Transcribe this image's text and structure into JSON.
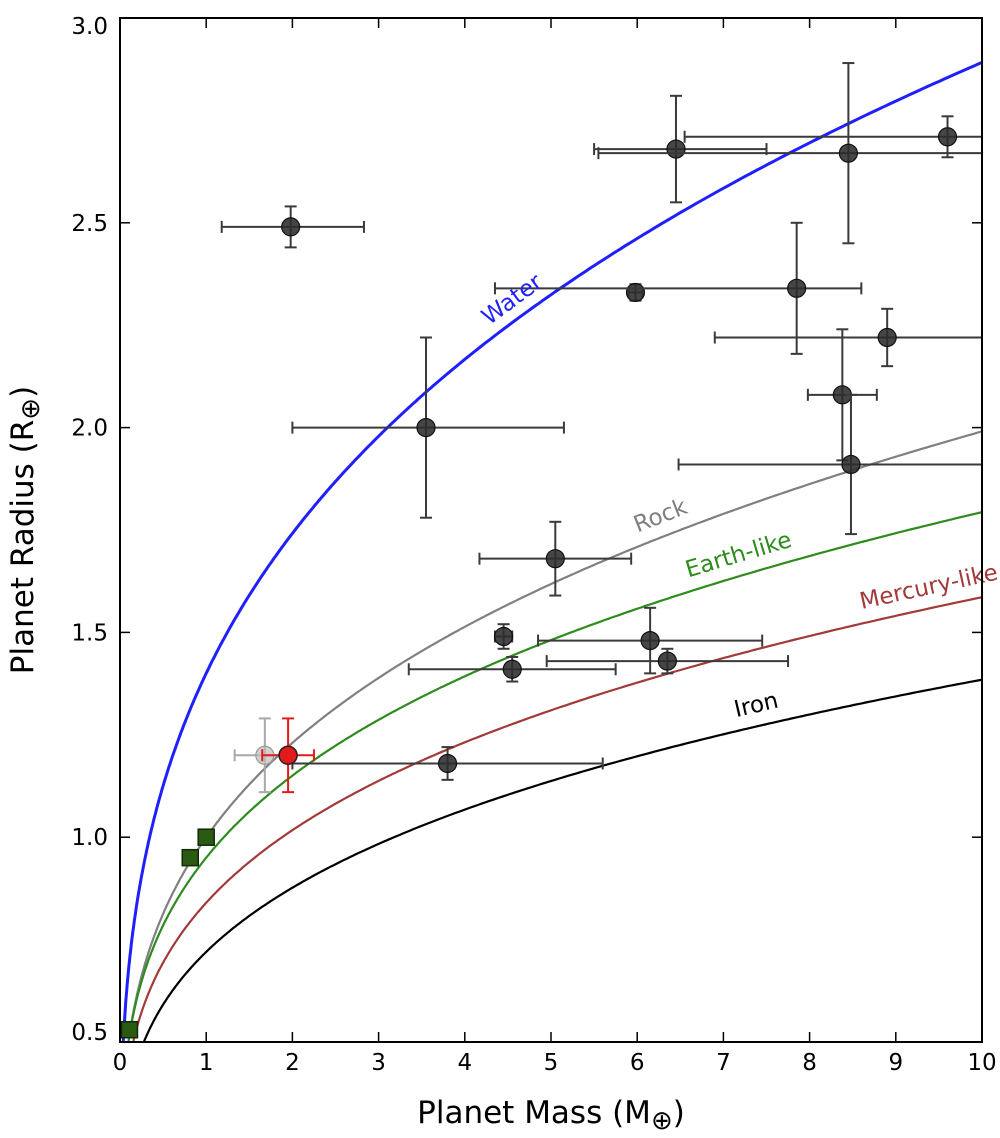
{
  "chart_data": {
    "type": "scatter",
    "title": "",
    "xlabel_text": "Planet Mass (M",
    "ylabel_text": "Planet Radius (R",
    "axis_symbol": "⊕",
    "xlim": [
      0,
      10
    ],
    "ylim": [
      0.5,
      3.0
    ],
    "xticks": [
      0,
      1,
      2,
      3,
      4,
      5,
      6,
      7,
      8,
      9,
      10
    ],
    "yticks": [
      0.5,
      1.0,
      1.5,
      2.0,
      2.5,
      3.0
    ],
    "grid": false,
    "curves": [
      {
        "name": "Water",
        "color": "#1f1fff",
        "a": 1.4,
        "b": 0.315
      },
      {
        "name": "Rock",
        "color": "#808080",
        "a": 1.0,
        "b": 0.299
      },
      {
        "name": "Earth-like",
        "color": "#2e8b1e",
        "a": 0.95,
        "b": 0.276
      },
      {
        "name": "Mercury-like",
        "color": "#a33a3a",
        "a": 0.84,
        "b": 0.276
      },
      {
        "name": "Iron",
        "color": "#000000",
        "a": 0.72,
        "b": 0.284
      }
    ],
    "planets": [
      {
        "x": 1.98,
        "y": 2.49,
        "xerr": [
          0.8,
          0.85
        ],
        "yerr": [
          0.05,
          0.05
        ]
      },
      {
        "x": 3.55,
        "y": 2.0,
        "xerr": [
          1.55,
          1.6
        ],
        "yerr": [
          0.22,
          0.22
        ]
      },
      {
        "x": 6.45,
        "y": 2.68,
        "xerr": [
          0.95,
          1.05
        ],
        "yerr": [
          0.13,
          0.13
        ]
      },
      {
        "x": 8.45,
        "y": 2.67,
        "xerr": [
          2.9,
          2.9
        ],
        "yerr": [
          0.22,
          0.22
        ]
      },
      {
        "x": 9.6,
        "y": 2.71,
        "xerr": [
          3.05,
          3.05
        ],
        "yerr": [
          0.05,
          0.05
        ]
      },
      {
        "x": 5.98,
        "y": 2.33,
        "xerr": [
          0.08,
          0.08
        ],
        "yerr": [
          0.02,
          0.02
        ]
      },
      {
        "x": 7.85,
        "y": 2.34,
        "xerr": [
          3.5,
          0.75
        ],
        "yerr": [
          0.16,
          0.16
        ]
      },
      {
        "x": 8.9,
        "y": 2.22,
        "xerr": [
          2.0,
          1.6
        ],
        "yerr": [
          0.07,
          0.07
        ]
      },
      {
        "x": 8.38,
        "y": 2.08,
        "xerr": [
          0.4,
          0.4
        ],
        "yerr": [
          0.16,
          0.16
        ]
      },
      {
        "x": 8.48,
        "y": 1.91,
        "xerr": [
          2.0,
          2.0
        ],
        "yerr": [
          0.17,
          0.17
        ]
      },
      {
        "x": 5.05,
        "y": 1.68,
        "xerr": [
          0.88,
          0.88
        ],
        "yerr": [
          0.09,
          0.09
        ]
      },
      {
        "x": 4.45,
        "y": 1.49,
        "xerr": [
          0.1,
          0.1
        ],
        "yerr": [
          0.03,
          0.03
        ]
      },
      {
        "x": 4.55,
        "y": 1.41,
        "xerr": [
          1.2,
          1.2
        ],
        "yerr": [
          0.03,
          0.03
        ]
      },
      {
        "x": 6.15,
        "y": 1.48,
        "xerr": [
          1.3,
          1.3
        ],
        "yerr": [
          0.08,
          0.08
        ]
      },
      {
        "x": 6.35,
        "y": 1.43,
        "xerr": [
          1.4,
          1.4
        ],
        "yerr": [
          0.03,
          0.03
        ]
      },
      {
        "x": 3.8,
        "y": 1.18,
        "xerr": [
          1.8,
          1.8
        ],
        "yerr": [
          0.04,
          0.04
        ]
      },
      {
        "x": 1.68,
        "y": 1.2,
        "xerr": [
          0.35,
          0.35
        ],
        "yerr": [
          0.09,
          0.09
        ],
        "light": true
      }
    ],
    "highlight": {
      "x": 1.95,
      "y": 1.2,
      "xerr": [
        0.3,
        0.3
      ],
      "yerr": [
        0.09,
        0.09
      ],
      "color": "#e31a1c"
    },
    "solar_system": [
      {
        "x": 0.11,
        "y": 0.53
      },
      {
        "x": 0.815,
        "y": 0.95
      },
      {
        "x": 1.0,
        "y": 1.0
      }
    ]
  }
}
